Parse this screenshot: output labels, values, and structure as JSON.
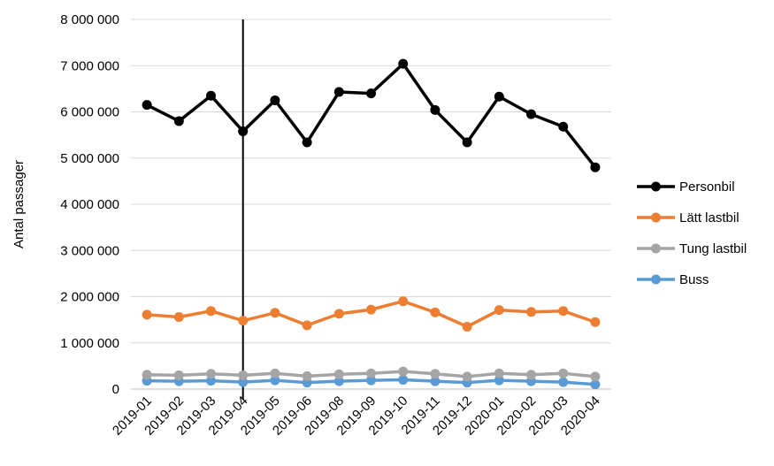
{
  "chart_data": {
    "type": "line",
    "title": "",
    "xlabel": "",
    "ylabel": "Antal passager",
    "ylim": [
      0,
      8000000
    ],
    "yticks": [
      0,
      1000000,
      2000000,
      3000000,
      4000000,
      5000000,
      6000000,
      7000000,
      8000000
    ],
    "ytick_labels": [
      "0",
      "1 000 000",
      "2 000 000",
      "3 000 000",
      "4 000 000",
      "5 000 000",
      "6 000 000",
      "7 000 000",
      "8 000 000"
    ],
    "categories": [
      "2019-01",
      "2019-02",
      "2019-03",
      "2019-04",
      "2019-05",
      "2019-06",
      "2019-08",
      "2019-09",
      "2019-10",
      "2019-11",
      "2019-12",
      "2020-01",
      "2020-02",
      "2020-03",
      "2020-04"
    ],
    "grid": "horizontal",
    "legend_position": "right",
    "marker_category": "2019-04",
    "series": [
      {
        "name": "Personbil",
        "color": "#000000",
        "values": [
          6150000,
          5800000,
          6350000,
          5580000,
          6250000,
          5340000,
          6430000,
          6400000,
          7040000,
          6040000,
          5340000,
          6330000,
          5950000,
          5680000,
          4800000
        ]
      },
      {
        "name": "Lätt lastbil",
        "color": "#ED7D31",
        "values": [
          1610000,
          1560000,
          1690000,
          1480000,
          1650000,
          1380000,
          1630000,
          1720000,
          1900000,
          1660000,
          1350000,
          1710000,
          1670000,
          1690000,
          1450000
        ]
      },
      {
        "name": "Tung lastbil",
        "color": "#A5A5A5",
        "values": [
          310000,
          300000,
          330000,
          300000,
          340000,
          280000,
          320000,
          340000,
          380000,
          330000,
          270000,
          340000,
          310000,
          340000,
          270000
        ]
      },
      {
        "name": "Buss",
        "color": "#5B9BD5",
        "values": [
          180000,
          170000,
          180000,
          150000,
          190000,
          140000,
          170000,
          190000,
          200000,
          170000,
          140000,
          190000,
          170000,
          150000,
          100000
        ]
      }
    ]
  }
}
